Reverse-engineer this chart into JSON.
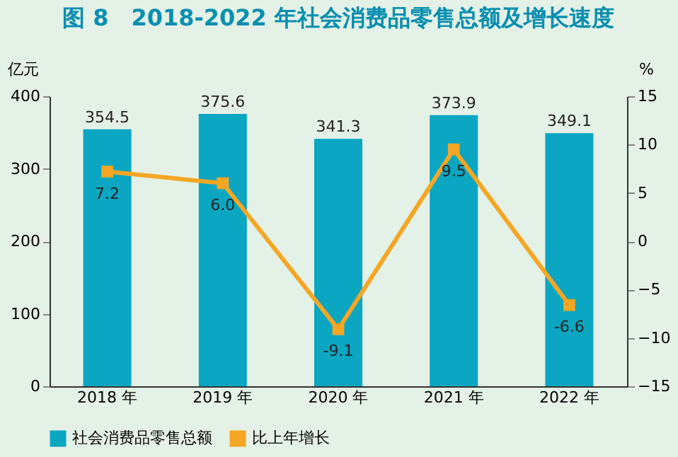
{
  "chart_data": {
    "type": "bar",
    "title": "图 8　2018-2022 年社会消费品零售总额及增长速度",
    "categories": [
      "2018 年",
      "2019 年",
      "2020 年",
      "2021 年",
      "2022 年"
    ],
    "series": [
      {
        "name": "社会消费品零售总额",
        "color": "#0aa6c2",
        "values": [
          354.5,
          375.6,
          341.3,
          373.9,
          349.1
        ],
        "value_labels": [
          "354.5",
          "375.6",
          "341.3",
          "373.9",
          "349.1"
        ]
      },
      {
        "name": "比上年增长",
        "type": "line",
        "axis": "y2",
        "marker": "square",
        "color": "#f5a623",
        "values": [
          7.2,
          6.0,
          -9.1,
          9.5,
          -6.6
        ],
        "value_labels": [
          "7.2",
          "6.0",
          "-9.1",
          "9.5",
          "-6.6"
        ]
      }
    ],
    "ylabel": "亿元",
    "y2label": "%",
    "ylim": [
      0,
      400
    ],
    "yticks": [
      0,
      100,
      200,
      300,
      400
    ],
    "y2lim": [
      -15,
      15
    ],
    "y2ticks": [
      -15,
      -10,
      -5,
      0,
      5,
      10,
      15
    ],
    "legend": "bottom",
    "grid": false
  }
}
